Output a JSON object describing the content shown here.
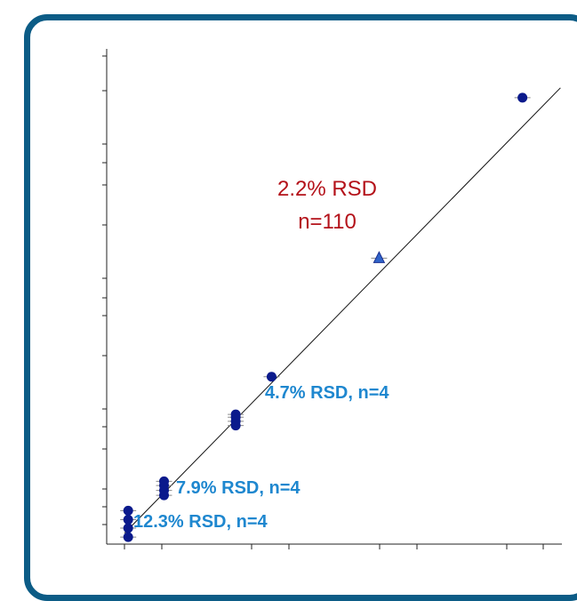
{
  "chart_data": {
    "type": "scatter",
    "title": "",
    "xlabel": "",
    "ylabel": "",
    "xlim": [
      0.7,
      7.05
    ],
    "ylim": [
      0.8,
      7.9
    ],
    "grid": false,
    "fit_line": {
      "slope": 1.05,
      "intercept": -0.04
    },
    "series": [
      {
        "marker": "circle",
        "color": "#0b1a8c",
        "points": [
          {
            "x": 1,
            "y": 0.9
          },
          {
            "x": 1,
            "y": 1.03
          },
          {
            "x": 1,
            "y": 1.15
          },
          {
            "x": 1,
            "y": 1.28
          },
          {
            "x": 1.5,
            "y": 1.5
          },
          {
            "x": 1.5,
            "y": 1.57
          },
          {
            "x": 1.5,
            "y": 1.64
          },
          {
            "x": 1.5,
            "y": 1.7
          },
          {
            "x": 2.5,
            "y": 2.5
          },
          {
            "x": 2.5,
            "y": 2.56
          },
          {
            "x": 2.5,
            "y": 2.62
          },
          {
            "x": 2.5,
            "y": 2.66
          },
          {
            "x": 3,
            "y": 3.2
          },
          {
            "x": 6.5,
            "y": 7.2
          }
        ]
      },
      {
        "marker": "triangle",
        "color": "#2f63c9",
        "points": [
          {
            "x": 4.5,
            "y": 4.9
          }
        ]
      }
    ],
    "annotations": [
      {
        "text": "2.2% RSD",
        "color": "#b4121a"
      },
      {
        "text": "n=110",
        "color": "#b4121a"
      },
      {
        "text": "4.7% RSD, n=4",
        "color": "#1e87cf"
      },
      {
        "text": "7.9% RSD, n=4",
        "color": "#1e87cf"
      },
      {
        "text": "12.3% RSD, n=4",
        "color": "#1e87cf"
      }
    ]
  }
}
